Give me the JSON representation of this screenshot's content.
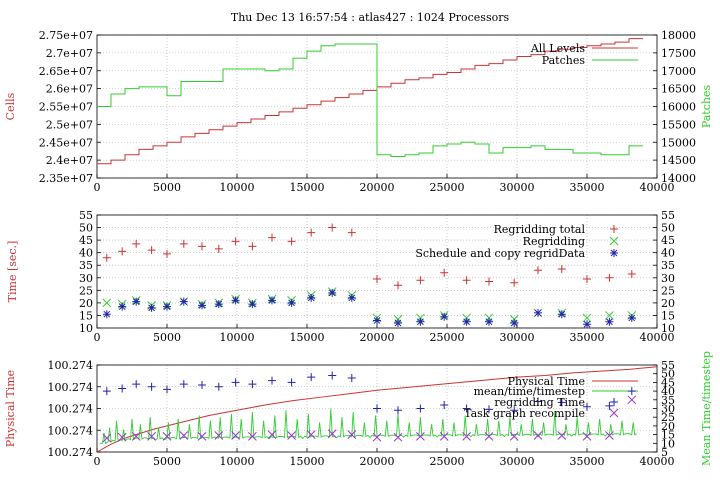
{
  "title": "Thu Dec 13 16:57:54 : atlas427 : 1024 Processors",
  "colors": {
    "red": "#cc3333",
    "green": "#33cc33",
    "blue": "#2222aa",
    "purple": "#9933cc",
    "axis": "#000000",
    "grid": "#aaaaaa"
  },
  "chart_data": [
    {
      "type": "line",
      "ylabel": "Cells",
      "y2label": "Patches",
      "xlim": [
        0,
        40000
      ],
      "ylim": [
        23500000,
        27500000
      ],
      "y2lim": [
        14000,
        18000
      ],
      "grid": true,
      "legend": "top-right",
      "xticks": [
        "0",
        "5000",
        "10000",
        "15000",
        "20000",
        "25000",
        "30000",
        "35000",
        "40000"
      ],
      "yticks": [
        "2.35e+07",
        "2.4e+07",
        "2.45e+07",
        "2.5e+07",
        "2.55e+07",
        "2.6e+07",
        "2.65e+07",
        "2.7e+07",
        "2.75e+07"
      ],
      "y2ticks": [
        "14000",
        "14500",
        "15000",
        "15500",
        "16000",
        "16500",
        "17000",
        "17500",
        "18000"
      ],
      "series": [
        {
          "name": "All Levels",
          "axis": "left",
          "color": "red",
          "step": true,
          "x": [
            0,
            1000,
            2000,
            3000,
            4000,
            5000,
            6000,
            7000,
            8000,
            9000,
            10000,
            11000,
            12000,
            13000,
            14000,
            15000,
            16000,
            17000,
            18000,
            19000,
            20000,
            21000,
            22000,
            23000,
            24000,
            25000,
            26000,
            27000,
            28000,
            29000,
            30000,
            31000,
            32000,
            33000,
            34000,
            35000,
            36000,
            37000,
            38000
          ],
          "y": [
            23900000,
            24000000,
            24150000,
            24300000,
            24400000,
            24500000,
            24650000,
            24750000,
            24850000,
            24950000,
            25050000,
            25150000,
            25250000,
            25350000,
            25450000,
            25550000,
            25650000,
            25750000,
            25850000,
            25950000,
            26050000,
            26150000,
            26250000,
            26300000,
            26400000,
            26450000,
            26550000,
            26650000,
            26700000,
            26800000,
            26900000,
            26950000,
            27050000,
            27100000,
            27150000,
            27200000,
            27250000,
            27300000,
            27400000
          ]
        },
        {
          "name": "Patches",
          "axis": "right",
          "color": "green",
          "step": true,
          "x": [
            0,
            1000,
            2000,
            3000,
            4000,
            5000,
            6000,
            7000,
            8000,
            9000,
            10000,
            11000,
            12000,
            13000,
            14000,
            15000,
            16000,
            17000,
            18000,
            19000,
            20000,
            21000,
            22000,
            23000,
            24000,
            25000,
            26000,
            27000,
            28000,
            29000,
            30000,
            31000,
            32000,
            33000,
            34000,
            35000,
            36000,
            37000,
            38000
          ],
          "y": [
            16000,
            16350,
            16500,
            16550,
            16550,
            16300,
            16700,
            16700,
            16700,
            17050,
            17050,
            17050,
            17000,
            17050,
            17350,
            17550,
            17700,
            17750,
            17750,
            17750,
            14650,
            14600,
            14650,
            14700,
            14900,
            14950,
            15000,
            14950,
            14700,
            14850,
            14850,
            14900,
            14800,
            14800,
            14700,
            14700,
            14650,
            14650,
            14900
          ]
        }
      ]
    },
    {
      "type": "scatter",
      "ylabel": "Time [sec.]",
      "xlim": [
        0,
        40000
      ],
      "ylim": [
        10,
        55
      ],
      "y2lim": [
        10,
        55
      ],
      "grid": true,
      "legend": "top-right",
      "xticks": [
        "0",
        "5000",
        "10000",
        "15000",
        "20000",
        "25000",
        "30000",
        "35000",
        "40000"
      ],
      "yticks": [
        "10",
        "15",
        "20",
        "25",
        "30",
        "35",
        "40",
        "45",
        "50",
        "55"
      ],
      "y2ticks": [
        "10",
        "15",
        "20",
        "25",
        "30",
        "35",
        "40",
        "45",
        "50",
        "55"
      ],
      "series": [
        {
          "name": "Regridding total",
          "marker": "plus",
          "color": "red",
          "x": [
            700,
            1800,
            2800,
            3900,
            5000,
            6200,
            7500,
            8700,
            9900,
            11100,
            12500,
            13900,
            15300,
            16800,
            18200,
            20000,
            21500,
            23100,
            24800,
            26400,
            28000,
            29800,
            31500,
            33200,
            35000,
            36600,
            38200
          ],
          "y": [
            38,
            40.5,
            43.5,
            41,
            39.5,
            43.5,
            42.5,
            41.5,
            44.5,
            42.5,
            46,
            44.5,
            48,
            50,
            48,
            29.5,
            27,
            29,
            32,
            29,
            28.5,
            28,
            33,
            33.5,
            29.5,
            30,
            31.5
          ]
        },
        {
          "name": "Regridding",
          "marker": "x",
          "color": "green",
          "x": [
            700,
            1800,
            2800,
            3900,
            5000,
            6200,
            7500,
            8700,
            9900,
            11100,
            12500,
            13900,
            15300,
            16800,
            18200,
            20000,
            21500,
            23100,
            24800,
            26400,
            28000,
            29800,
            31500,
            33200,
            35000,
            36600,
            38200
          ],
          "y": [
            20,
            19.5,
            21,
            19,
            19,
            20.5,
            19.5,
            20,
            21.5,
            20,
            21.5,
            21,
            23,
            24.5,
            23,
            14,
            13.5,
            14,
            15,
            14,
            14,
            13.5,
            16,
            16,
            14,
            15,
            15
          ]
        },
        {
          "name": "Schedule and copy regridData",
          "marker": "star",
          "color": "blue",
          "x": [
            700,
            1800,
            2800,
            3900,
            5000,
            6200,
            7500,
            8700,
            9900,
            11100,
            12500,
            13900,
            15300,
            16800,
            18200,
            20000,
            21500,
            23100,
            24800,
            26400,
            28000,
            29800,
            31500,
            33200,
            35000,
            36600,
            38200
          ],
          "y": [
            15.5,
            18.5,
            20.5,
            18,
            18.5,
            20.5,
            19,
            19.5,
            21,
            19.5,
            21,
            20,
            22,
            24,
            22,
            13,
            12,
            12.5,
            14.5,
            12.5,
            12.5,
            12,
            16,
            15.5,
            11.5,
            12.5,
            14
          ]
        }
      ]
    },
    {
      "type": "line",
      "ylabel": "Physical Time",
      "y2label": "Mean Time/timestep",
      "xlim": [
        0,
        40000
      ],
      "ylim": [
        0,
        1
      ],
      "y2lim": [
        5,
        55
      ],
      "grid": true,
      "legend": "top-right",
      "xticks": [
        "0",
        "5000",
        "10000",
        "15000",
        "20000",
        "25000",
        "30000",
        "35000",
        "40000"
      ],
      "yticks": [
        "100.274",
        "100.274",
        "100.274",
        "100.274",
        "100.274"
      ],
      "y2ticks": [
        "5",
        "10",
        "15",
        "20",
        "25",
        "30",
        "35",
        "40",
        "45",
        "50",
        "55"
      ],
      "series": [
        {
          "name": "Physical Time",
          "axis": "left",
          "color": "red",
          "x": [
            0,
            1000,
            2000,
            4000,
            6000,
            8000,
            10000,
            12000,
            14000,
            16000,
            18000,
            20000,
            22000,
            24000,
            26000,
            28000,
            30000,
            32000,
            34000,
            36000,
            38000,
            40000
          ],
          "y": [
            0,
            0.09,
            0.16,
            0.26,
            0.34,
            0.42,
            0.48,
            0.54,
            0.59,
            0.63,
            0.67,
            0.71,
            0.74,
            0.77,
            0.8,
            0.83,
            0.86,
            0.88,
            0.91,
            0.93,
            0.95,
            0.98
          ]
        },
        {
          "name": "mean/time/timestep",
          "axis": "right",
          "color": "green",
          "baseline": [
            [
              0,
              9
            ],
            [
              1000,
              11
            ],
            [
              3000,
              12.5
            ],
            [
              10000,
              13
            ],
            [
              20000,
              14
            ],
            [
              40000,
              15
            ]
          ],
          "spikes_x": [
            500,
            900,
            1400,
            1900,
            2500,
            3100,
            3800,
            4400,
            5100,
            5800,
            6600,
            7300,
            8100,
            8800,
            9600,
            10300,
            11100,
            11900,
            12700,
            13500,
            14300,
            15100,
            15900,
            16700,
            17500,
            18300,
            19100,
            19900,
            20700,
            21500,
            22300,
            23100,
            23900,
            24700,
            25500,
            26300,
            27100,
            27900,
            28700,
            29500,
            30300,
            31100,
            31900,
            32700,
            33500,
            34300,
            35100,
            35900,
            36700,
            37500,
            38300
          ],
          "spikes_y": [
            16,
            19,
            23,
            18,
            24,
            21,
            25,
            19,
            22,
            24,
            21,
            26,
            23,
            25,
            27,
            24,
            28,
            23,
            26,
            29,
            24,
            27,
            22,
            30,
            25,
            28,
            22,
            26,
            23,
            27,
            22,
            25,
            21,
            24,
            22,
            26,
            21,
            24,
            23,
            25,
            21,
            24,
            22,
            28,
            21,
            25,
            22,
            24,
            21,
            23,
            22
          ]
        },
        {
          "name": "regridding Time",
          "axis": "right",
          "marker": "plus",
          "color": "blue",
          "x": [
            700,
            1800,
            2800,
            3900,
            5000,
            6200,
            7500,
            8700,
            9900,
            11100,
            12500,
            13900,
            15300,
            16800,
            18200,
            20000,
            21500,
            23100,
            24800,
            26400,
            28000,
            29800,
            31500,
            33200,
            35000,
            36600,
            38200
          ],
          "y": [
            40,
            41.5,
            44,
            42.5,
            41,
            44,
            43.5,
            42.5,
            45,
            44,
            46,
            45,
            48,
            49,
            47.5,
            30,
            29,
            30,
            32,
            30,
            29.5,
            29,
            34,
            33.5,
            31,
            31.5,
            40
          ]
        },
        {
          "name": "Task graph recompile",
          "axis": "right",
          "marker": "x",
          "color": "purple",
          "x": [
            700,
            1800,
            2800,
            3900,
            5000,
            6200,
            7500,
            8700,
            9900,
            11100,
            12500,
            13900,
            15300,
            16800,
            18200,
            20000,
            21500,
            23100,
            24800,
            26400,
            28000,
            29800,
            31500,
            33200,
            35000,
            36600,
            38200
          ],
          "y": [
            13,
            13.5,
            14,
            14,
            14,
            14.5,
            14,
            14.5,
            14.5,
            14,
            15,
            14.5,
            15,
            15.5,
            15,
            13.5,
            13.5,
            14,
            14,
            14,
            14,
            14,
            14.5,
            14.5,
            14,
            14.5,
            35
          ]
        }
      ]
    }
  ]
}
